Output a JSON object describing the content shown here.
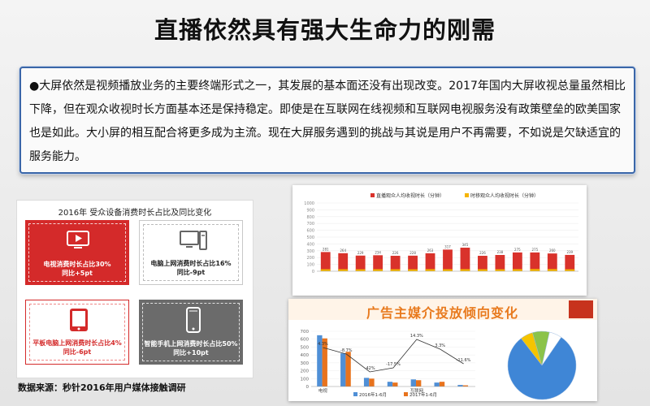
{
  "slide": {
    "title": "直播依然具有强大生命力的刚需",
    "bullet_symbol": "●",
    "paragraph": "大屏依然是视频播放业务的主要终端形式之一，其发展的基本面还没有出现改变。2017年国内大屏收视总量虽然相比下降，但在观众收视时长方面基本还是保持稳定。即使是在互联网在线视频和互联网电视服务没有政策壁垒的欧美国家也是如此。大小屏的相互配合将更多成为主流。现在大屏服务遇到的挑战与其说是用户不再需要，不如说是欠缺适宜的服务能力。",
    "source": "数据来源：秒针2016年用户媒体接触调研"
  },
  "device_panel": {
    "title": "2016年 受众设备消费时长占比及同比变化",
    "cards": [
      {
        "icon": "tv-icon",
        "line1": "电视消费时长占比30%",
        "line2": "同比+5pt"
      },
      {
        "icon": "desktop-computer-icon",
        "line1": "电脑上网消费时长占比16%",
        "line2": "同比-9pt"
      },
      {
        "icon": "tablet-icon",
        "line1": "平板电脑上网消费时长占比4%",
        "line2": "同比-6pt"
      },
      {
        "icon": "smartphone-icon",
        "line1": "智能手机上网消费时长占比50%",
        "line2": "同比+10pt"
      }
    ]
  },
  "chart_data": [
    {
      "type": "bar",
      "title": "",
      "legend_position": "top",
      "colors": {
        "primary": "#d9322b",
        "secondary": "#f5b400"
      },
      "series": [
        {
          "name": "直播观众人均收视时长（分钟）",
          "values": [
            281,
            264,
            229,
            234,
            226,
            228,
            263,
            317,
            345,
            226,
            238,
            275,
            275,
            260,
            239
          ]
        },
        {
          "name": "时移观众人均收视时长（分钟）",
          "values": [
            29,
            29,
            28,
            29,
            29,
            28,
            30,
            29,
            30,
            29,
            28,
            30,
            32,
            31,
            28
          ]
        }
      ],
      "categories": [
        "",
        "",
        "",
        "",
        "",
        "",
        "",
        "",
        "",
        "",
        "",
        "",
        "",
        "",
        ""
      ],
      "ylim": [
        0,
        1000
      ],
      "yticks": [
        0,
        100,
        200,
        300,
        400,
        500,
        600,
        700,
        800,
        900,
        1000
      ]
    },
    {
      "type": "bar",
      "title": "广告主媒介投放倾向变化",
      "legend_position": "bottom",
      "categories": [
        "电视",
        "",
        "",
        "",
        "互联网",
        "",
        ""
      ],
      "series": [
        {
          "name": "2016年1-6月",
          "values": [
            650,
            420,
            110,
            60,
            90,
            50,
            20
          ],
          "color": "#4f8fd6"
        },
        {
          "name": "2017年1-6月",
          "values": [
            610,
            440,
            100,
            50,
            80,
            60,
            15
          ],
          "color": "#e8731d"
        }
      ],
      "line_labels": [
        "4.3%",
        "-8.7%",
        "-42%",
        "-17.5%",
        "14.3%",
        "3.3%",
        "-11.6%"
      ],
      "ylim": [
        0,
        700
      ],
      "yticks": [
        0,
        100,
        200,
        300,
        400,
        500,
        600,
        700
      ],
      "footnote": "",
      "pie": {
        "values": [
          80,
          6,
          8,
          6
        ],
        "labels": [
          "",
          "",
          "",
          ""
        ],
        "colors": [
          "#3f86d6",
          "#f5c400",
          "#8bc34a",
          "#ffffff"
        ]
      }
    }
  ]
}
